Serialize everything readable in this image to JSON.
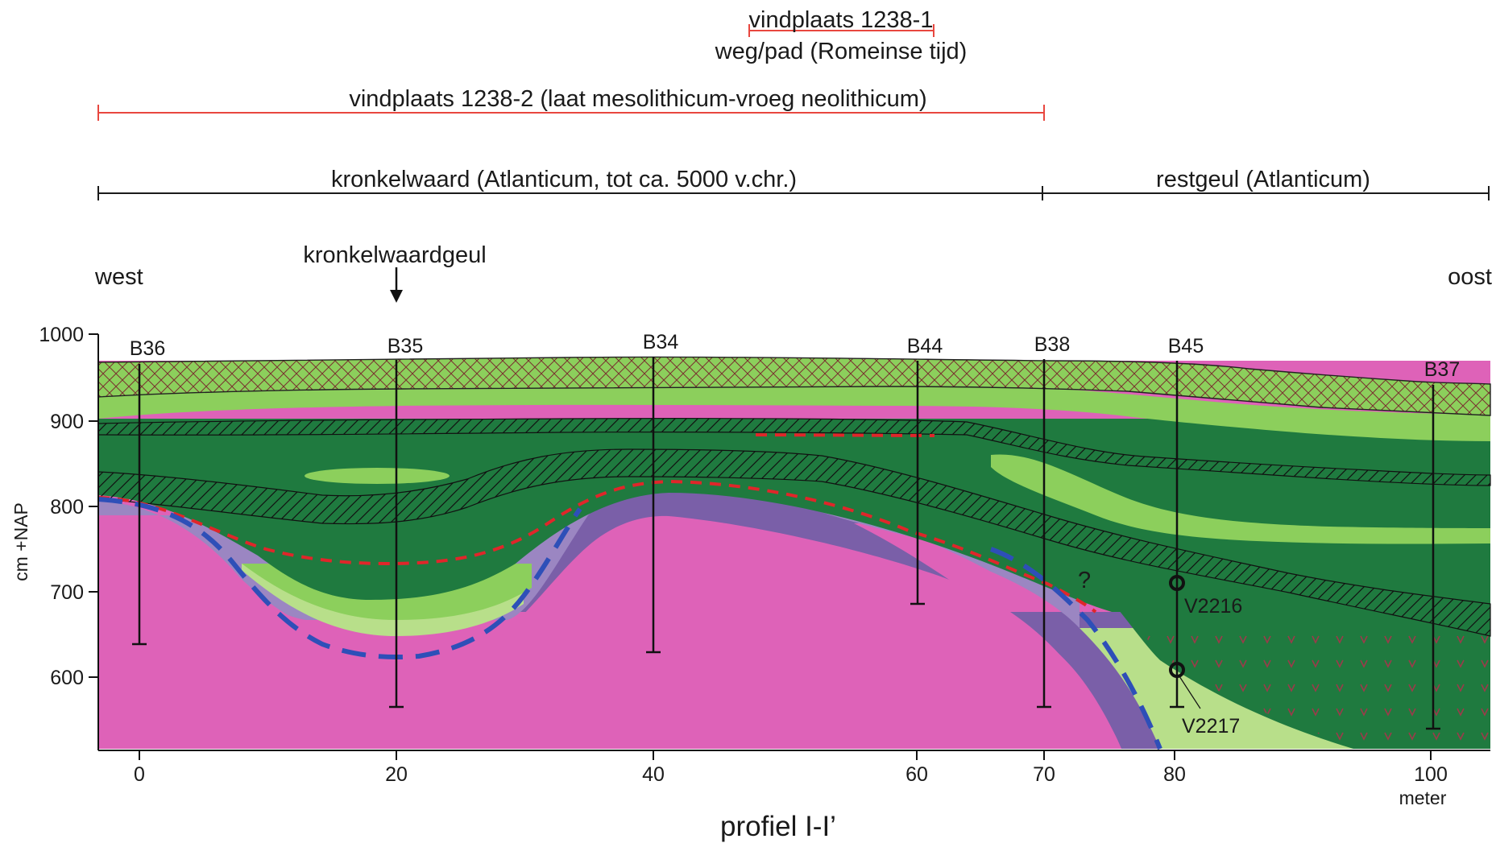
{
  "range_bars": [
    {
      "key": "site1",
      "label": "vindplaats 1238-1",
      "color": "#e8473f"
    },
    {
      "key": "road",
      "label": "weg/pad (Romeinse tijd)"
    },
    {
      "key": "site2",
      "label": "vindplaats 1238-2 (laat mesolithicum-vroeg neolithicum)",
      "color": "#e8473f"
    },
    {
      "key": "kronkelwaard",
      "label": "kronkelwaard (Atlanticum, tot ca. 5000 v.chr.)",
      "color": "#1a1a1a"
    },
    {
      "key": "restgeul",
      "label": "restgeul (Atlanticum)",
      "color": "#1a1a1a"
    }
  ],
  "directions": {
    "west": "west",
    "east": "oost"
  },
  "annotation_channel": "kronkelwaardgeul",
  "y_axis": {
    "label": "cm +NAP",
    "ticks": [
      "1000",
      "900",
      "800",
      "700",
      "600"
    ]
  },
  "x_axis": {
    "ticks": [
      "0",
      "20",
      "40",
      "60",
      "70",
      "80",
      "100"
    ],
    "unit": "meter"
  },
  "boreholes": [
    "B36",
    "B35",
    "B34",
    "B44",
    "B38",
    "B45",
    "B37"
  ],
  "samples": [
    "V2216",
    "V2217"
  ],
  "uncertain_mark": "?",
  "title": "profiel I-I’",
  "colors": {
    "topsoil_green": "#8ccf5c",
    "crosshatch": "#7a2f2f",
    "light_green": "#8ccf5c",
    "dark_green": "#1f7a3f",
    "pale_green": "#b8df8a",
    "purple": "#9b86c2",
    "dark_purple": "#7a5fa8",
    "magenta": "#de62b8",
    "red_dashed": "#e0262a",
    "blue_dashed": "#2e4fb8",
    "vegetation_mark": "#9b3a4a"
  }
}
